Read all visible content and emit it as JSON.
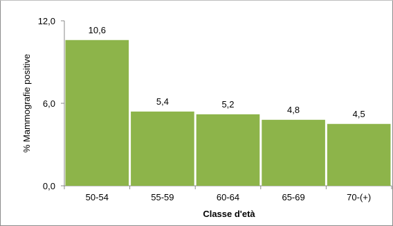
{
  "chart_data": {
    "type": "bar",
    "categories": [
      "50-54",
      "55-59",
      "60-64",
      "65-69",
      "70-(+)"
    ],
    "values": [
      10.6,
      5.4,
      5.2,
      4.8,
      4.5
    ],
    "data_labels": [
      "10,6",
      "5,4",
      "5,2",
      "4,8",
      "4,5"
    ],
    "xlabel": "Classe d'età",
    "ylabel": "% Mammografie positive",
    "ylim": [
      0,
      12
    ],
    "yticks": [
      0,
      6,
      12
    ],
    "ytick_labels": [
      "0,0",
      "6,0",
      "12,0"
    ],
    "bar_color": "#8db44a",
    "grid": false,
    "legend": "none"
  }
}
